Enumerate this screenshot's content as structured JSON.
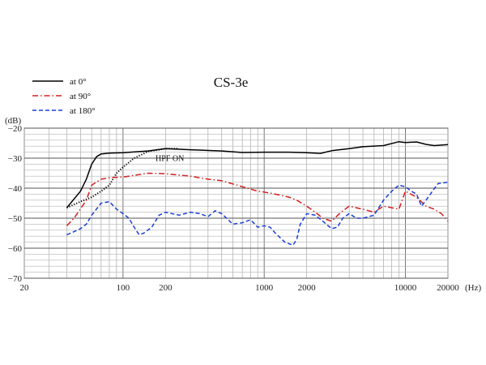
{
  "chart_data": {
    "type": "line",
    "title": "CS-3e",
    "ylabel": "(dB)",
    "xlabel": "(Hz)",
    "xscale": "log",
    "xlim": [
      20,
      20000
    ],
    "ylim": [
      -70,
      -20
    ],
    "grid": true,
    "legend_position": "top-left",
    "x_ticks": [
      {
        "value": 20,
        "label": "20"
      },
      {
        "value": 100,
        "label": "100"
      },
      {
        "value": 200,
        "label": "200"
      },
      {
        "value": 1000,
        "label": "1000"
      },
      {
        "value": 2000,
        "label": "2000"
      },
      {
        "value": 10000,
        "label": "10000"
      },
      {
        "value": 20000,
        "label": "20000"
      }
    ],
    "y_ticks": [
      {
        "value": -20,
        "label": "−20"
      },
      {
        "value": -30,
        "label": "−30"
      },
      {
        "value": -40,
        "label": "−40"
      },
      {
        "value": -50,
        "label": "−50"
      },
      {
        "value": -60,
        "label": "−60"
      },
      {
        "value": -70,
        "label": "−70"
      }
    ],
    "annotation": {
      "text": "HPF ON",
      "x": 170,
      "y": -31
    },
    "series": [
      {
        "name": "at 0°",
        "color": "#000000",
        "dash": "solid",
        "points": [
          [
            40,
            -46.5
          ],
          [
            50,
            -41
          ],
          [
            55,
            -37
          ],
          [
            60,
            -32
          ],
          [
            65,
            -29.5
          ],
          [
            70,
            -28.6
          ],
          [
            80,
            -28.3
          ],
          [
            100,
            -28.2
          ],
          [
            150,
            -27.6
          ],
          [
            200,
            -26.8
          ],
          [
            300,
            -27.2
          ],
          [
            500,
            -27.6
          ],
          [
            700,
            -28.1
          ],
          [
            1000,
            -28.0
          ],
          [
            1500,
            -28.0
          ],
          [
            2000,
            -28.2
          ],
          [
            2500,
            -28.4
          ],
          [
            3000,
            -27.5
          ],
          [
            4000,
            -26.8
          ],
          [
            5000,
            -26.2
          ],
          [
            7000,
            -25.8
          ],
          [
            9000,
            -24.5
          ],
          [
            10000,
            -24.8
          ],
          [
            12000,
            -24.6
          ],
          [
            14000,
            -25.4
          ],
          [
            16000,
            -25.8
          ],
          [
            20000,
            -25.5
          ]
        ]
      },
      {
        "name": "HPF ON",
        "color": "#000000",
        "dash": "dotted",
        "points": [
          [
            40,
            -46.5
          ],
          [
            50,
            -44.5
          ],
          [
            60,
            -43
          ],
          [
            70,
            -41
          ],
          [
            80,
            -39
          ],
          [
            90,
            -35
          ],
          [
            100,
            -33
          ],
          [
            120,
            -30
          ],
          [
            150,
            -27.8
          ],
          [
            200,
            -26.8
          ],
          [
            250,
            -26.8
          ]
        ]
      },
      {
        "name": "at 90°",
        "color": "#d42020",
        "dash": "dashdot",
        "points": [
          [
            40,
            -52.5
          ],
          [
            45,
            -50
          ],
          [
            55,
            -44
          ],
          [
            60,
            -39
          ],
          [
            70,
            -37
          ],
          [
            80,
            -36.5
          ],
          [
            100,
            -36.3
          ],
          [
            130,
            -35.5
          ],
          [
            150,
            -35
          ],
          [
            200,
            -35.2
          ],
          [
            300,
            -36
          ],
          [
            400,
            -37
          ],
          [
            500,
            -37.5
          ],
          [
            700,
            -39.5
          ],
          [
            900,
            -41
          ],
          [
            1000,
            -41.3
          ],
          [
            1200,
            -42
          ],
          [
            1500,
            -43
          ],
          [
            1700,
            -44
          ],
          [
            2000,
            -46
          ],
          [
            2300,
            -48
          ],
          [
            2600,
            -50
          ],
          [
            3000,
            -51
          ],
          [
            3500,
            -48
          ],
          [
            4000,
            -46
          ],
          [
            5000,
            -47
          ],
          [
            6000,
            -48
          ],
          [
            7000,
            -46
          ],
          [
            8000,
            -46.5
          ],
          [
            9000,
            -47
          ],
          [
            10000,
            -41
          ],
          [
            12000,
            -43
          ],
          [
            14000,
            -46
          ],
          [
            16000,
            -47
          ],
          [
            18000,
            -48.5
          ],
          [
            20000,
            -51
          ]
        ]
      },
      {
        "name": "at 180°",
        "color": "#1a3ed4",
        "dash": "dashed",
        "points": [
          [
            40,
            -55.5
          ],
          [
            45,
            -54.5
          ],
          [
            50,
            -53.5
          ],
          [
            55,
            -52
          ],
          [
            60,
            -49
          ],
          [
            70,
            -45
          ],
          [
            80,
            -44.5
          ],
          [
            90,
            -47
          ],
          [
            100,
            -48.5
          ],
          [
            110,
            -50
          ],
          [
            120,
            -53
          ],
          [
            130,
            -55.5
          ],
          [
            140,
            -55
          ],
          [
            160,
            -53
          ],
          [
            180,
            -49
          ],
          [
            200,
            -48
          ],
          [
            250,
            -49
          ],
          [
            300,
            -48
          ],
          [
            350,
            -48.5
          ],
          [
            400,
            -49.5
          ],
          [
            450,
            -47.5
          ],
          [
            500,
            -48.5
          ],
          [
            600,
            -52
          ],
          [
            700,
            -51.5
          ],
          [
            800,
            -50.5
          ],
          [
            900,
            -53
          ],
          [
            1000,
            -52.5
          ],
          [
            1100,
            -53
          ],
          [
            1200,
            -55
          ],
          [
            1400,
            -58
          ],
          [
            1600,
            -59
          ],
          [
            1700,
            -57
          ],
          [
            1800,
            -52
          ],
          [
            2000,
            -48.5
          ],
          [
            2300,
            -49
          ],
          [
            2600,
            -51
          ],
          [
            3000,
            -53.5
          ],
          [
            3300,
            -53
          ],
          [
            3600,
            -50
          ],
          [
            4000,
            -48.5
          ],
          [
            4500,
            -50
          ],
          [
            5000,
            -50
          ],
          [
            6000,
            -49
          ],
          [
            7000,
            -44
          ],
          [
            8000,
            -41
          ],
          [
            9000,
            -39
          ],
          [
            10000,
            -39.5
          ],
          [
            11000,
            -41
          ],
          [
            12000,
            -42
          ],
          [
            13000,
            -46
          ],
          [
            14000,
            -44
          ],
          [
            15000,
            -42
          ],
          [
            17000,
            -38.5
          ],
          [
            20000,
            -38
          ]
        ]
      }
    ],
    "legend": [
      {
        "label": "at 0°",
        "color": "#000000",
        "dash": "solid"
      },
      {
        "label": "at 90°",
        "color": "#d42020",
        "dash": "dashdot"
      },
      {
        "label": "at 180°",
        "color": "#1a3ed4",
        "dash": "dashed"
      }
    ]
  }
}
